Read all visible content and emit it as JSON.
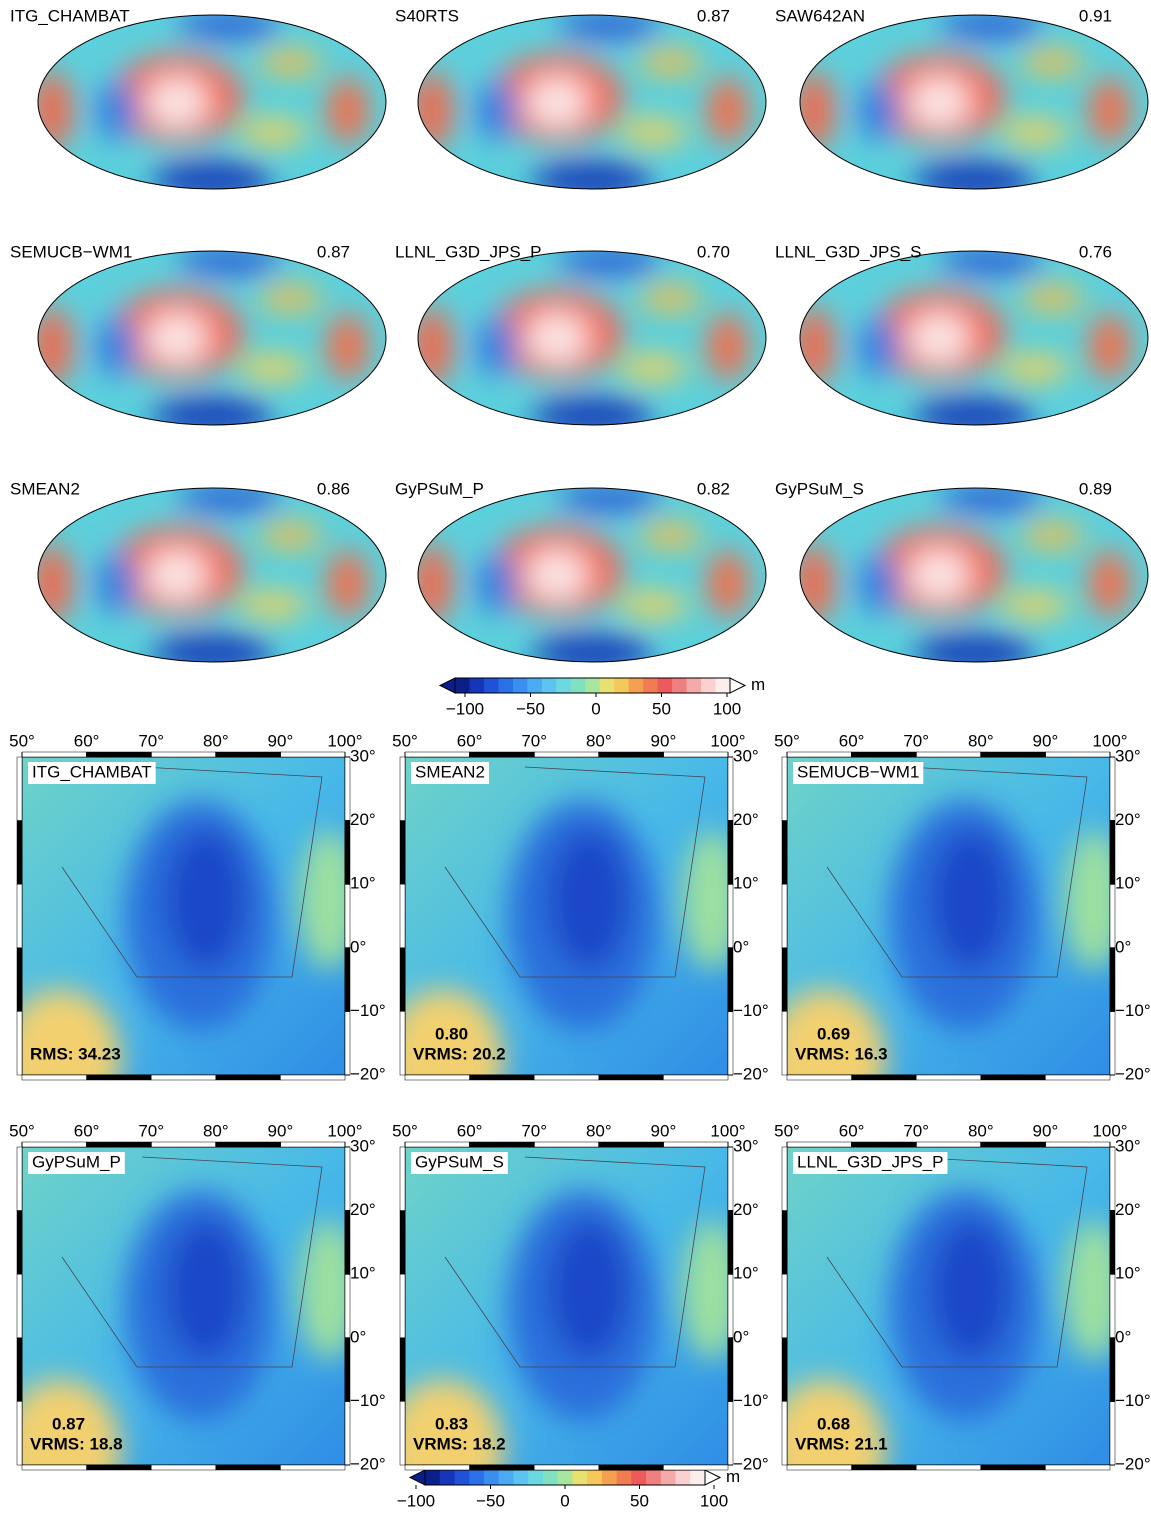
{
  "global_maps": [
    {
      "name": "ITG_CHAMBAT"
    },
    {
      "name": "S40RTS",
      "correlation": "0.87"
    },
    {
      "name": "SAW642AN",
      "correlation": "0.91"
    },
    {
      "name": "SEMUCB−WM1",
      "correlation": "0.87"
    },
    {
      "name": "LLNL_G3D_JPS_P",
      "correlation": "0.70"
    },
    {
      "name": "LLNL_G3D_JPS_S",
      "correlation": "0.76"
    },
    {
      "name": "SMEAN2",
      "correlation": "0.86"
    },
    {
      "name": "GyPSuM_P",
      "correlation": "0.82"
    },
    {
      "name": "GyPSuM_S",
      "correlation": "0.89"
    }
  ],
  "colorbar_top": {
    "unit": "m",
    "ticks": [
      {
        "value": -100,
        "label": "−100"
      },
      {
        "value": -50,
        "label": "−50"
      },
      0,
      50,
      100
    ]
  },
  "regional_maps": [
    {
      "name": "ITG_CHAMBAT",
      "stat": "RMS: 34.23"
    },
    {
      "name": "SMEAN2",
      "correlation": "0.80",
      "stat": "VRMS: 20.2"
    },
    {
      "name": "SEMUCB−WM1",
      "correlation": "0.69",
      "stat": "VRMS: 16.3"
    },
    {
      "name": "GyPSuM_P",
      "correlation": "0.87",
      "stat": "VRMS: 18.8"
    },
    {
      "name": "GyPSuM_S",
      "correlation": "0.83",
      "stat": "VRMS: 18.2"
    },
    {
      "name": "LLNL_G3D_JPS_P",
      "correlation": "0.68",
      "stat": "VRMS: 21.1"
    }
  ],
  "lon_ticks": [
    {
      "value": 50,
      "label": "50°"
    },
    {
      "value": 60,
      "label": "60°"
    },
    {
      "value": 70,
      "label": "70°"
    },
    {
      "value": 80,
      "label": "80°"
    },
    {
      "value": 90,
      "label": "90°"
    },
    {
      "value": 100,
      "label": "100°"
    }
  ],
  "lat_ticks": [
    {
      "value": 30,
      "label": "30°"
    },
    {
      "value": 20,
      "label": "20°"
    },
    {
      "value": 10,
      "label": "10°"
    },
    {
      "value": 0,
      "label": "0°"
    },
    {
      "value": -10,
      "label": "−10°"
    },
    {
      "value": -20,
      "label": "−20°"
    }
  ],
  "colorbar_bottom": {
    "unit": "m",
    "ticks": [
      {
        "value": -100,
        "label": "−100"
      },
      {
        "value": -50,
        "label": "−50"
      },
      0,
      50,
      100
    ]
  }
}
